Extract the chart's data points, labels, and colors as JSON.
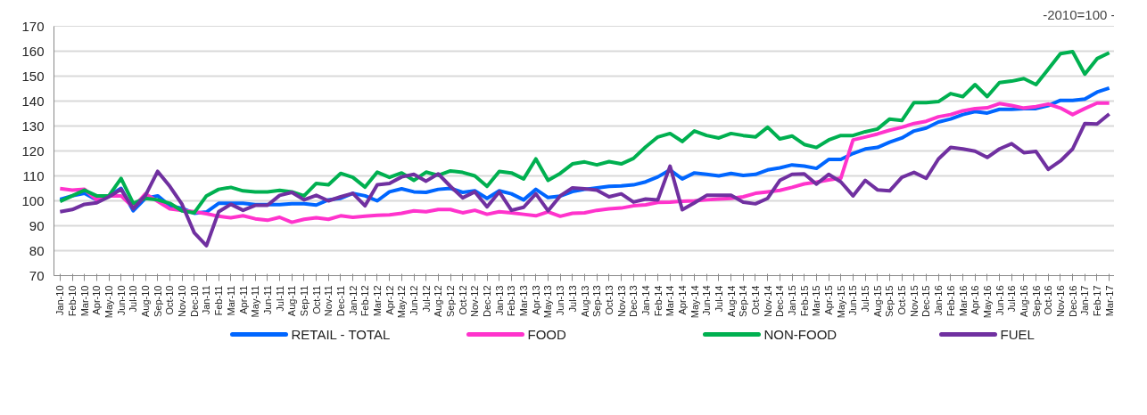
{
  "chart_data": {
    "type": "line",
    "title": "-2010=100 -",
    "categories": [
      "Jan-10",
      "Feb-10",
      "Mar-10",
      "Apr-10",
      "May-10",
      "Jun-10",
      "Jul-10",
      "Aug-10",
      "Sep-10",
      "Oct-10",
      "Nov-10",
      "Dec-10",
      "Jan-11",
      "Feb-11",
      "Mar-11",
      "Apr-11",
      "May-11",
      "Jun-11",
      "Jul-11",
      "Aug-11",
      "Sep-11",
      "Oct-11",
      "Nov-11",
      "Dec-11",
      "Jan-12",
      "Feb-12",
      "Mar-12",
      "Apr-12",
      "May-12",
      "Jun-12",
      "Jul-12",
      "Aug-12",
      "Sep-12",
      "Oct-12",
      "Nov-12",
      "Dec-12",
      "Jan-13",
      "Feb-13",
      "Mar-13",
      "Apr-13",
      "May-13",
      "Jun-13",
      "Jul-13",
      "Aug-13",
      "Sep-13",
      "Oct-13",
      "Nov-13",
      "Dec-13",
      "Jan-14",
      "Feb-14",
      "Mar-14",
      "Apr-14",
      "May-14",
      "Jun-14",
      "Jul-14",
      "Aug-14",
      "Sep-14",
      "Oct-14",
      "Nov-14",
      "Dec-14",
      "Jan-15",
      "Feb-15",
      "Mar-15",
      "Apr-15",
      "May-15",
      "Jun-15",
      "Jul-15",
      "Aug-15",
      "Sep-15",
      "Oct-15",
      "Nov-15",
      "Dec-15",
      "Jan-16",
      "Feb-16",
      "Mar-16",
      "Apr-16",
      "May-16",
      "Jun-16",
      "Jul-16",
      "Aug-16",
      "Sep-16",
      "Oct-16",
      "Nov-16",
      "Dec-16",
      "Jan-17",
      "Feb-17",
      "Mar-17"
    ],
    "series": [
      {
        "name": "RETAIL - TOTAL",
        "color": "#0066ff",
        "values": [
          100.6,
          102,
          103,
          100.4,
          102,
          105,
          96,
          101,
          102,
          98,
          97,
          95,
          95.5,
          99,
          99,
          99,
          98.5,
          98.5,
          98.5,
          98.8,
          98.8,
          98.3,
          100.4,
          101,
          103,
          102,
          100,
          103.6,
          104.8,
          103.6,
          103.4,
          104.6,
          105,
          103.4,
          104,
          101,
          104,
          102.8,
          100.4,
          104.6,
          101.3,
          101.9,
          103.7,
          104.6,
          105.2,
          105.8,
          106,
          106.4,
          107.6,
          109.6,
          112.4,
          108.8,
          111.2,
          110.6,
          110,
          111,
          110.2,
          110.6,
          112.4,
          113.2,
          114.4,
          113.9,
          113,
          116.6,
          116.6,
          119,
          120.8,
          121.4,
          123.5,
          125.2,
          128,
          129.2,
          131.6,
          132.8,
          134.6,
          135.8,
          135.2,
          136.7,
          136.7,
          137,
          137,
          138.2,
          140.3,
          140.3,
          140.8,
          143.6,
          145.2
        ]
      },
      {
        "name": "FOOD",
        "color": "#ff33cc",
        "values": [
          104.9,
          104.3,
          104.6,
          100.4,
          102,
          102,
          97.4,
          102.8,
          99.8,
          96.8,
          96.2,
          95.6,
          94.8,
          93.8,
          93.2,
          94,
          92.8,
          92.2,
          93.4,
          91.4,
          92.6,
          93.2,
          92.6,
          94,
          93.4,
          93.8,
          94.2,
          94.4,
          95,
          96,
          95.6,
          96.5,
          96.5,
          95.2,
          96.2,
          94.6,
          95.6,
          95.2,
          94.6,
          94,
          95.6,
          93.8,
          95,
          95.2,
          96.2,
          96.8,
          97.1,
          98,
          98.4,
          99.4,
          99.5,
          99.8,
          100,
          100.4,
          100.7,
          101,
          101.6,
          103,
          103.6,
          104.2,
          105.4,
          106.8,
          107.5,
          108.4,
          109.1,
          124.4,
          125.6,
          126.8,
          128.3,
          129.5,
          131,
          131.9,
          133.7,
          134.6,
          136.1,
          137,
          137.3,
          139,
          138.2,
          137.2,
          137.8,
          138.8,
          137.2,
          134.6,
          137,
          139.2,
          139.2
        ]
      },
      {
        "name": "NON-FOOD",
        "color": "#00b050",
        "values": [
          99.8,
          102,
          104.3,
          102,
          102,
          109,
          99,
          101,
          100.4,
          99,
          96,
          95.2,
          102,
          104.6,
          105.4,
          104,
          103.6,
          103.6,
          104.2,
          103.6,
          102,
          107,
          106.4,
          111,
          109.4,
          105.5,
          111.5,
          109.4,
          111.2,
          108.2,
          111.5,
          110.2,
          112,
          111.4,
          110,
          105.8,
          111.8,
          111.2,
          108.8,
          116.8,
          108.2,
          111,
          114.8,
          115.6,
          114.4,
          115.7,
          114.8,
          117,
          121.6,
          125.6,
          127,
          123.8,
          128,
          126.2,
          125.2,
          127,
          126.2,
          125.6,
          129.5,
          124.8,
          126,
          122.6,
          121.4,
          124.4,
          126.2,
          126.2,
          127.7,
          128.8,
          132.8,
          132.2,
          139.4,
          139.4,
          139.8,
          143,
          141.8,
          146.6,
          141.8,
          147.4,
          148,
          149,
          146.6,
          152.8,
          159,
          159.8,
          150.8,
          157,
          159.4
        ]
      },
      {
        "name": "FUEL",
        "color": "#7030a0",
        "values": [
          95.6,
          96.5,
          98.6,
          99.2,
          101.6,
          104.6,
          96.8,
          102.2,
          111.8,
          105.8,
          98.6,
          87.2,
          82,
          95.6,
          98.6,
          96.2,
          98.2,
          98.2,
          102.2,
          103.4,
          100.4,
          102.2,
          100,
          101.6,
          103,
          98,
          106.4,
          107,
          109.6,
          110.6,
          107.9,
          110.8,
          105.8,
          101.2,
          103.6,
          97.6,
          103.6,
          96.2,
          97.4,
          102.8,
          96,
          102,
          105.2,
          104.8,
          104.3,
          101.6,
          102.8,
          99.5,
          100.7,
          100.4,
          113.9,
          96.4,
          99.2,
          102.2,
          102.2,
          102.2,
          99.5,
          98.8,
          101,
          108.2,
          110.6,
          110.8,
          106.7,
          110.6,
          107.6,
          102,
          108.2,
          104.4,
          104,
          109.4,
          111.4,
          109,
          116.8,
          121.4,
          120.8,
          119.9,
          117.4,
          120.8,
          122.9,
          119.3,
          119.8,
          112.6,
          116,
          120.8,
          131,
          130.8,
          134.8
        ]
      }
    ],
    "ylim": [
      70,
      170
    ],
    "yticks": [
      70,
      80,
      90,
      100,
      110,
      120,
      130,
      140,
      150,
      160,
      170
    ],
    "grid": "y",
    "legend": "bottom",
    "marker": "none",
    "line_style": "solid"
  }
}
